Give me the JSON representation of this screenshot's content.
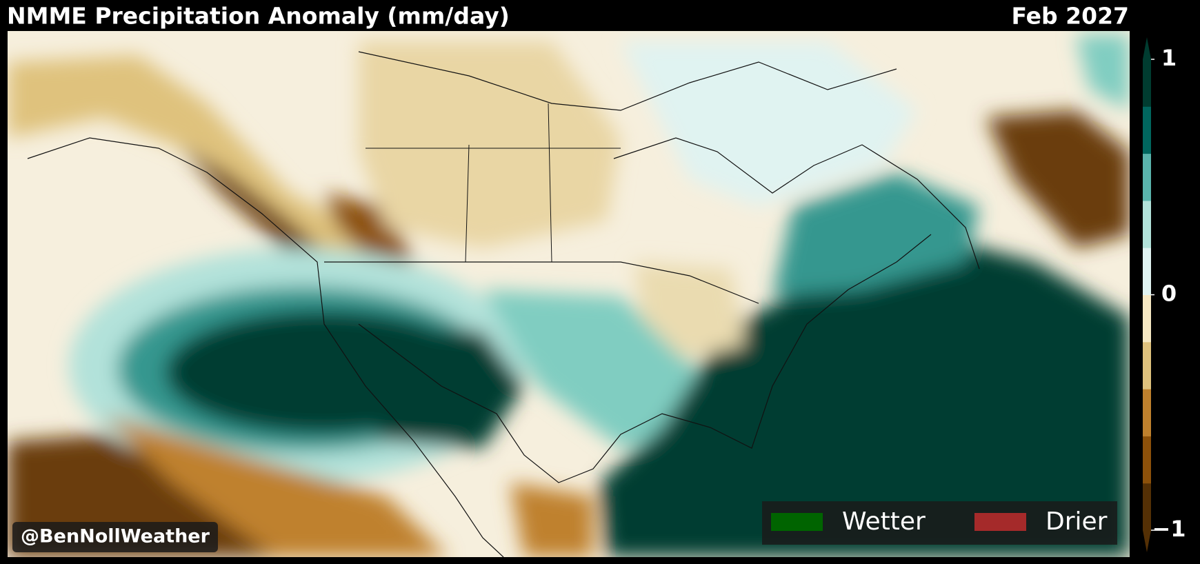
{
  "header": {
    "title": "NMME Precipitation Anomaly (mm/day)",
    "date": "Feb 2027"
  },
  "colorbar": {
    "lim": [
      -1,
      1
    ],
    "ticks": [
      1,
      0,
      {
        "value": -1,
        "label": "−1"
      }
    ],
    "colors": [
      "#543005",
      "#8c510a",
      "#bf812d",
      "#dfc27d",
      "#f6e8c3",
      "#e0f3f1",
      "#b2e2da",
      "#5ab4ac",
      "#01665e",
      "#003c30"
    ]
  },
  "legend": [
    {
      "label": "Wetter",
      "color": "#006400"
    },
    {
      "label": "Drier",
      "color": "#a52a2a"
    }
  ],
  "watermark": "@BenNollWeather"
}
